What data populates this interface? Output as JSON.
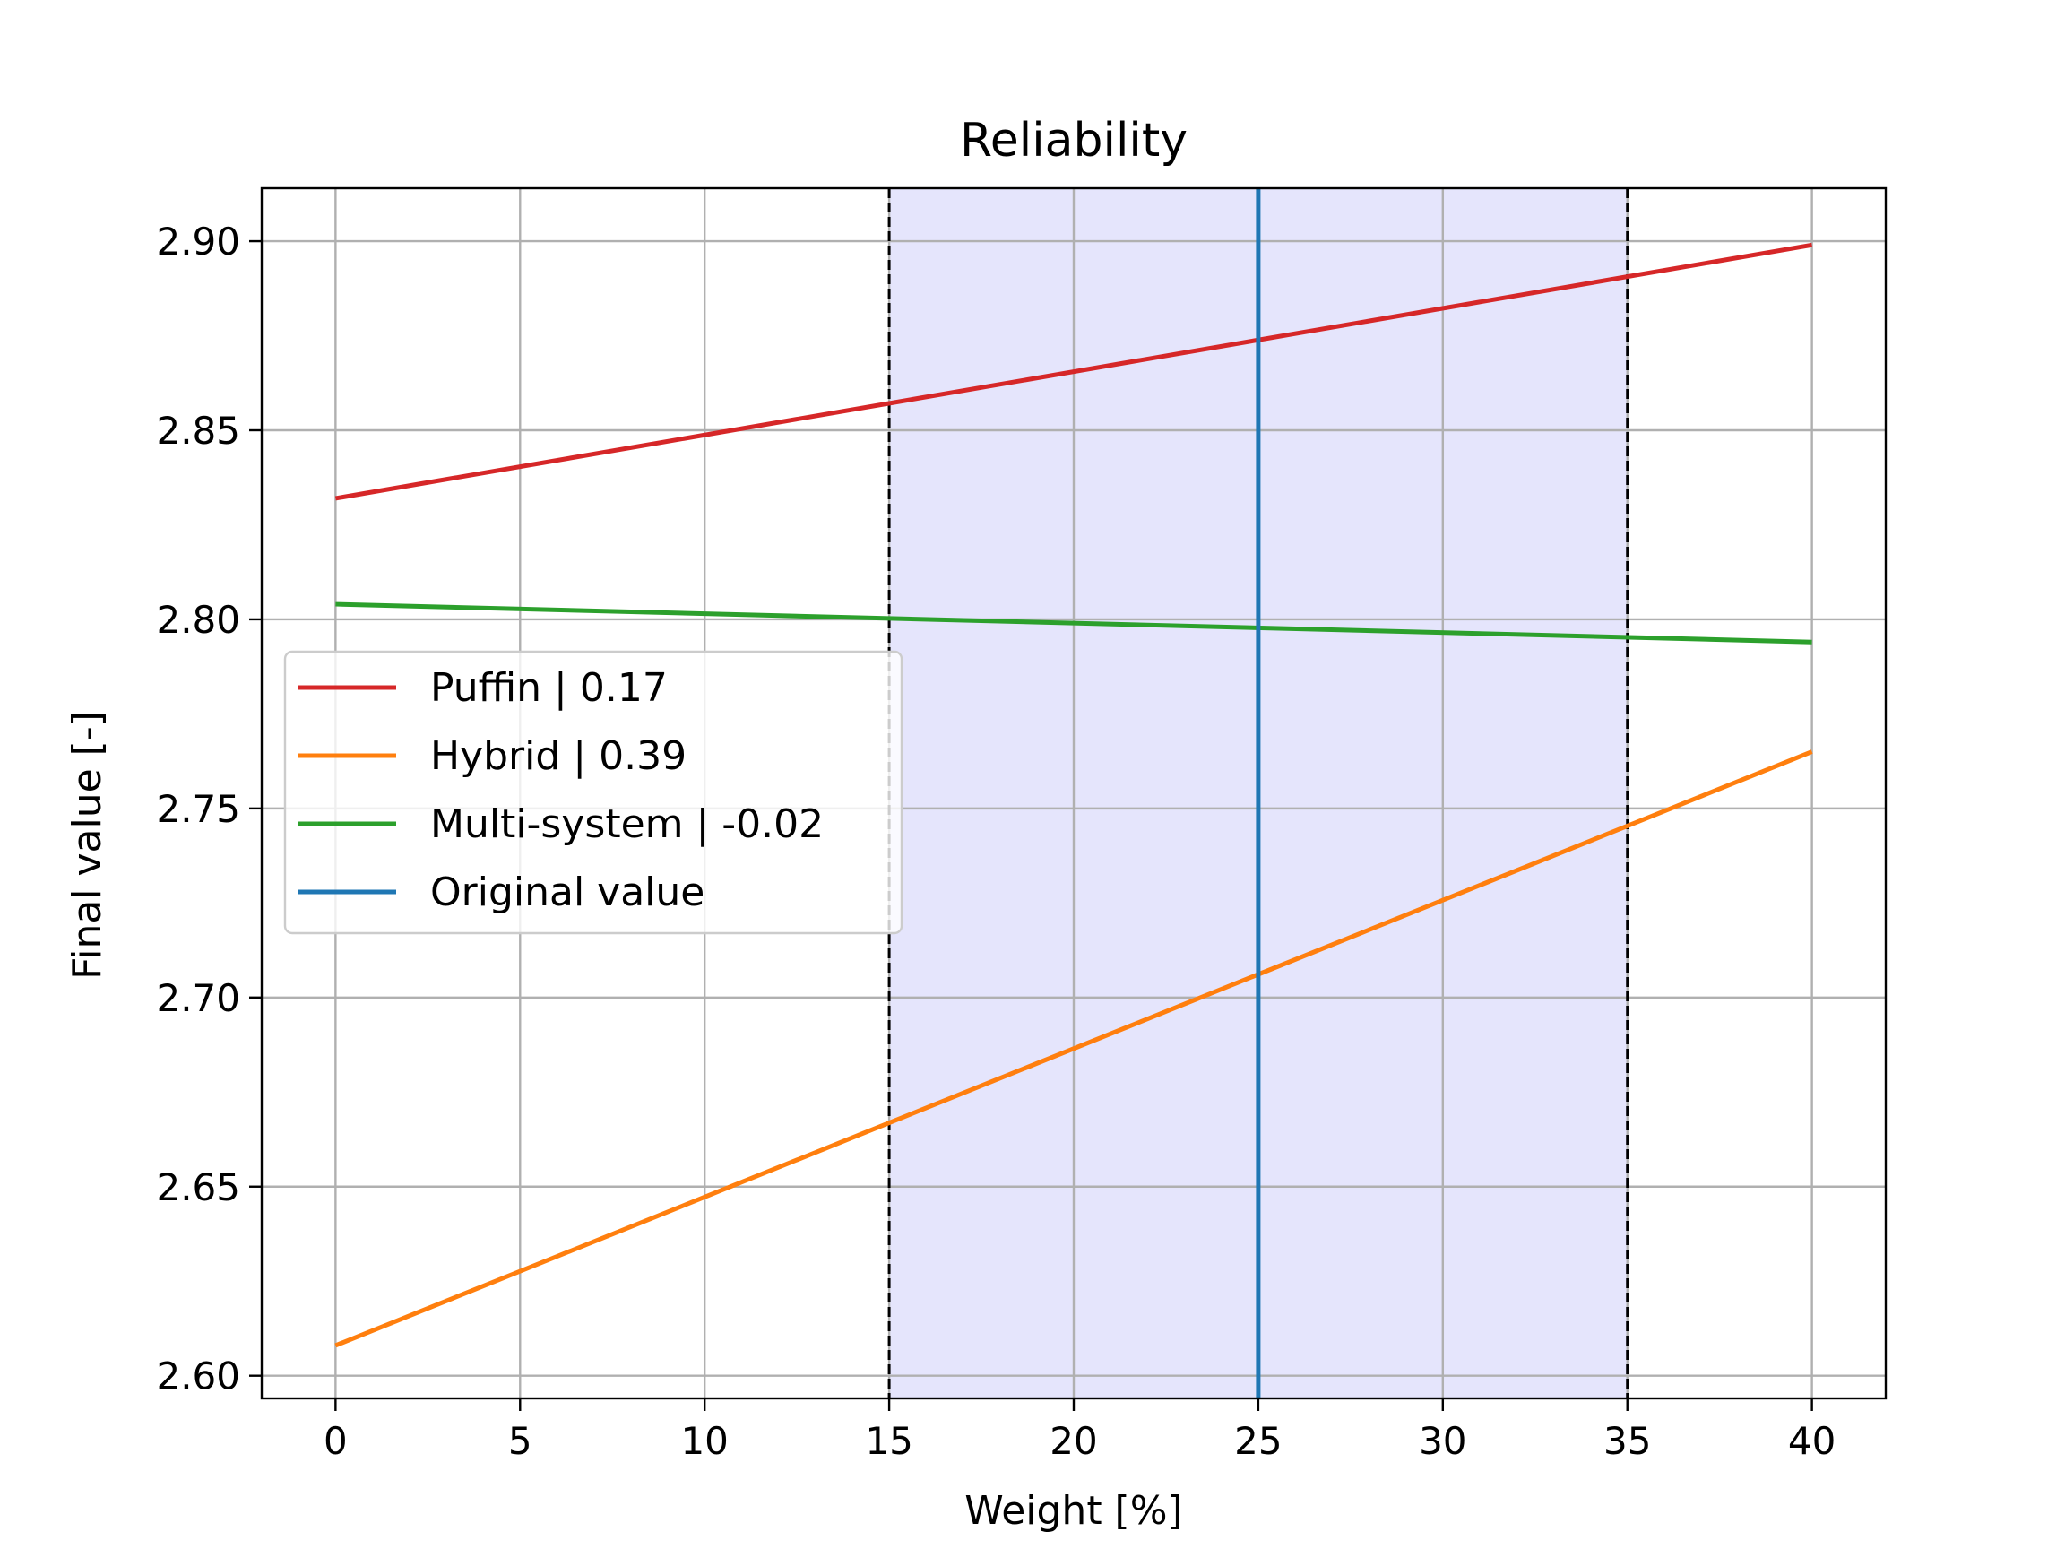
{
  "chart_data": {
    "type": "line",
    "title": "Reliability",
    "xlabel": "Weight [%]",
    "ylabel": "Final value [-]",
    "xlim": [
      -2,
      42
    ],
    "ylim": [
      2.594,
      2.914
    ],
    "xticks": [
      0,
      5,
      10,
      15,
      20,
      25,
      30,
      35,
      40
    ],
    "xtick_labels": [
      "0",
      "5",
      "10",
      "15",
      "20",
      "25",
      "30",
      "35",
      "40"
    ],
    "yticks": [
      2.6,
      2.65,
      2.7,
      2.75,
      2.8,
      2.85,
      2.9
    ],
    "ytick_labels": [
      "2.60",
      "2.65",
      "2.70",
      "2.75",
      "2.80",
      "2.85",
      "2.90"
    ],
    "grid": true,
    "legend_position": "center-left",
    "shaded_region": {
      "x": [
        15,
        35
      ],
      "color": "#e5e5fc"
    },
    "dashed_lines_x": [
      15,
      35
    ],
    "series": [
      {
        "name": "Puffin | 0.17",
        "color": "#d62728",
        "x": [
          0,
          40
        ],
        "y": [
          2.832,
          2.899
        ]
      },
      {
        "name": "Hybrid | 0.39",
        "color": "#ff7f0e",
        "x": [
          0,
          40
        ],
        "y": [
          2.608,
          2.765
        ]
      },
      {
        "name": "Multi-system | -0.02",
        "color": "#2ca02c",
        "x": [
          0,
          40
        ],
        "y": [
          2.804,
          2.794
        ]
      }
    ],
    "reference_line": {
      "name": "Original value",
      "color": "#1f77b4",
      "x": 25
    }
  }
}
